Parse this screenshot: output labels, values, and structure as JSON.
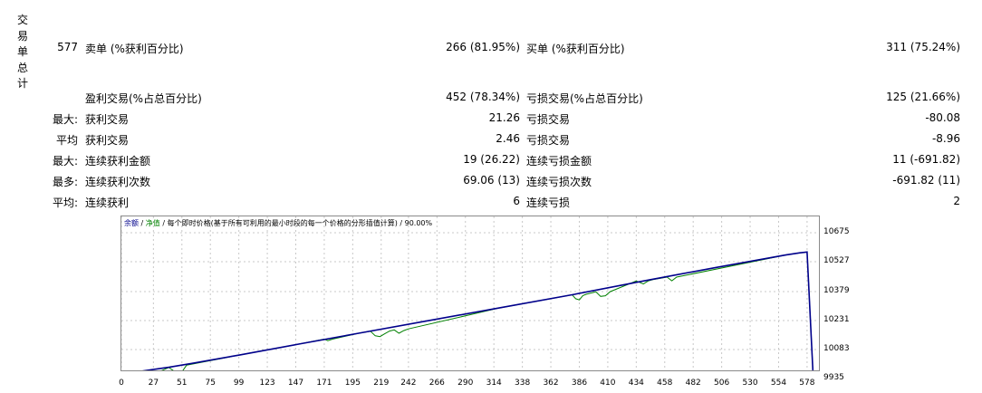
{
  "section_label": [
    "交",
    "易",
    "单",
    "总",
    "计"
  ],
  "row0": {
    "count": "577",
    "label1": "卖单 (%获利百分比)",
    "value1": "266 (81.95%)",
    "label2": "买单 (%获利百分比)",
    "value2": "311 (75.24%)"
  },
  "row1": {
    "label1": "盈利交易(%占总百分比)",
    "value1": "452 (78.34%)",
    "label2": "亏损交易(%占总百分比)",
    "value2": "125 (21.66%)"
  },
  "row2": {
    "prefix": "最大:",
    "label1": "获利交易",
    "value1": "21.26",
    "label2": "亏损交易",
    "value2": "-80.08"
  },
  "row3": {
    "prefix": "平均",
    "label1": "获利交易",
    "value1": "2.46",
    "label2": "亏损交易",
    "value2": "-8.96"
  },
  "row4": {
    "prefix": "最大:",
    "label1": "连续获利金额",
    "value1": "19 (26.22)",
    "label2": "连续亏损金额",
    "value2": "11 (-691.82)"
  },
  "row5": {
    "prefix": "最多:",
    "label1": "连续获利次数",
    "value1": "69.06 (13)",
    "label2": "连续亏损次数",
    "value2": "-691.82 (11)"
  },
  "row6": {
    "prefix": "平均:",
    "label1": "连续获利",
    "value1": "6",
    "label2": "连续亏损",
    "value2": "2"
  },
  "chart_title": {
    "balance": "余额",
    "sep1": "/",
    "equity": "净值",
    "rest": "/ 每个即时价格(基于所有可利用的最小时段的每一个价格的分形插值计算) / 90.00%"
  },
  "colors": {
    "balance": "#00008b",
    "equity": "#008000",
    "grid": "#c8c8c8"
  },
  "chart_data": {
    "type": "line",
    "title": "余额 / 净值 / 每个即时价格(基于所有可利用的最小时段的每一个价格的分形插值计算) / 90.00%",
    "y_ticks": [
      10675,
      10527,
      10379,
      10231,
      10083,
      9935
    ],
    "x_ticks": [
      0,
      27,
      51,
      75,
      99,
      123,
      147,
      171,
      195,
      219,
      242,
      266,
      290,
      314,
      338,
      362,
      386,
      410,
      434,
      458,
      482,
      506,
      530,
      554,
      578
    ],
    "ylim": [
      9935,
      10700
    ],
    "xlim": [
      0,
      588
    ],
    "series": [
      {
        "name": "余额",
        "x": [
          0,
          20,
          40,
          60,
          100,
          150,
          200,
          260,
          320,
          380,
          440,
          500,
          560,
          572,
          578,
          583
        ],
        "y": [
          9957,
          9975,
          9992,
          10012,
          10055,
          10110,
          10165,
          10230,
          10295,
          10360,
          10430,
          10497,
          10562,
          10573,
          10577,
          9957
        ]
      },
      {
        "name": "净值",
        "x": [
          0,
          18,
          22,
          26,
          30,
          34,
          40,
          45,
          50,
          55,
          100,
          150,
          171,
          174,
          178,
          200,
          210,
          214,
          218,
          222,
          226,
          230,
          234,
          238,
          242,
          320,
          380,
          383,
          386,
          389,
          392,
          400,
          404,
          408,
          412,
          434,
          440,
          444,
          448,
          460,
          464,
          468,
          560,
          572,
          578,
          583
        ],
        "y": [
          9957,
          9974,
          9965,
          9955,
          9965,
          9975,
          9991,
          9970,
          9960,
          10003,
          10055,
          10110,
          10135,
          10127,
          10135,
          10165,
          10175,
          10152,
          10148,
          10162,
          10176,
          10182,
          10165,
          10178,
          10187,
          10295,
          10360,
          10340,
          10334,
          10356,
          10363,
          10375,
          10352,
          10355,
          10376,
          10430,
          10415,
          10430,
          10437,
          10450,
          10431,
          10450,
          10562,
          10573,
          10577,
          9957
        ]
      }
    ]
  }
}
